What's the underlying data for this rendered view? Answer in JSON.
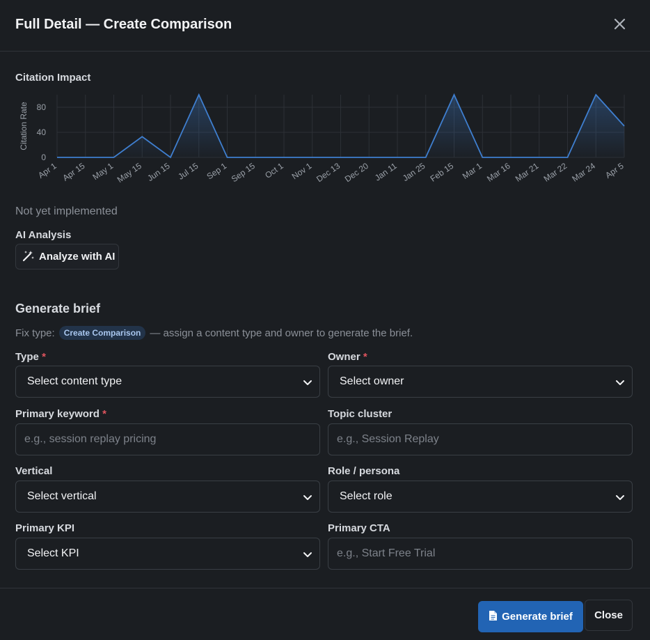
{
  "dialog": {
    "title": "Full Detail — Create Comparison"
  },
  "citation": {
    "label": "Citation Impact",
    "not_implemented": "Not yet implemented"
  },
  "chart_data": {
    "type": "area",
    "title": "",
    "xlabel": "",
    "ylabel": "Citation Rate",
    "ylim": [
      0,
      100
    ],
    "yticks": [
      0,
      40,
      80
    ],
    "grid": true,
    "categories": [
      "Apr 1",
      "Apr 15",
      "May 1",
      "May 15",
      "Jun 15",
      "Jul 15",
      "Sep 1",
      "Sep 15",
      "Oct 1",
      "Nov 1",
      "Dec 13",
      "Dec 20",
      "Jan 11",
      "Jan 25",
      "Feb 15",
      "Mar 1",
      "Mar 16",
      "Mar 21",
      "Mar 22",
      "Mar 24",
      "Apr 5"
    ],
    "series": [
      {
        "values": [
          0,
          0,
          0,
          33,
          0,
          100,
          0,
          0,
          0,
          0,
          0,
          0,
          0,
          0,
          100,
          0,
          0,
          0,
          0,
          100,
          50
        ]
      }
    ],
    "color": "#3f7fd0"
  },
  "ai": {
    "label": "AI Analysis",
    "button": "Analyze with AI"
  },
  "brief": {
    "title": "Generate brief",
    "fix_prefix": "Fix type:",
    "fix_badge": "Create Comparison",
    "fix_suffix": "— assign a content type and owner to generate the brief.",
    "required_mark": "*"
  },
  "form": {
    "type_label": "Type",
    "type_value": "Select content type",
    "owner_label": "Owner",
    "owner_value": "Select owner",
    "keyword_label": "Primary keyword",
    "keyword_placeholder": "e.g., session replay pricing",
    "topic_label": "Topic cluster",
    "topic_placeholder": "e.g., Session Replay",
    "vertical_label": "Vertical",
    "vertical_value": "Select vertical",
    "role_label": "Role / persona",
    "role_value": "Select role",
    "kpi_label": "Primary KPI",
    "kpi_value": "Select KPI",
    "cta_label": "Primary CTA",
    "cta_placeholder": "e.g., Start Free Trial"
  },
  "footer": {
    "generate_label": "Generate brief",
    "close_label": "Close"
  },
  "colors": {
    "accent": "#2264b4",
    "background": "#1b1e22",
    "required": "#e0545e"
  }
}
